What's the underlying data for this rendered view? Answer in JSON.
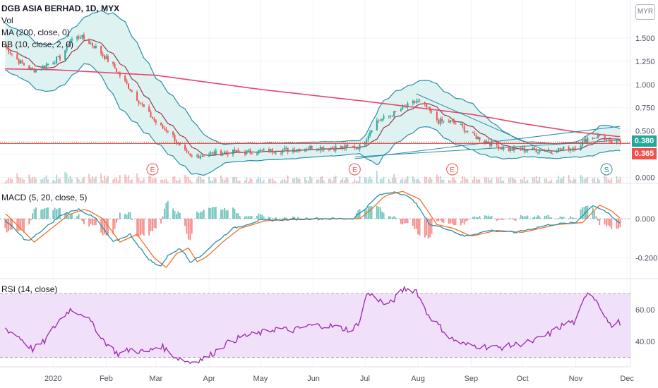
{
  "header": {
    "symbol_line": "DGB ASIA BERHAD, 1D, MYX",
    "vol_label": "Vol",
    "ma_label": "MA (200, close, 0)",
    "bb_label": "BB (10, close, 2, 0)",
    "currency": "MYR"
  },
  "price_tags": {
    "last": "0.380",
    "ref": "0.365"
  },
  "macd_label": "MACD (5, 20, close, 5)",
  "rsi_label": "RSI (14, close)",
  "colors": {
    "up": "#26a69a",
    "down": "#ef5350",
    "ma200": "#e6456d",
    "bb_basis": "#8e3c52",
    "bb_band": "#2a8fa6",
    "bb_fill": "#d6f0ee",
    "macd_line": "#2a8fa6",
    "signal_line": "#f2702b",
    "rsi_line": "#9c27b0",
    "rsi_fill": "#f1e0fa",
    "ref_line": "#e53935"
  },
  "chart_data": [
    {
      "type": "candlestick",
      "pane": "price",
      "y_ticks": [
        "1.500",
        "1.250",
        "1.000",
        "0.750",
        "0.500",
        "0.250",
        "0.000"
      ],
      "ylim": [
        -0.05,
        1.85
      ],
      "x_ticks": [
        "2020",
        "Feb",
        "Mar",
        "Apr",
        "May",
        "Jun",
        "Jul",
        "Aug",
        "Sep",
        "Oct",
        "Nov",
        "Dec"
      ],
      "x_tick_days": [
        0,
        31,
        60,
        91,
        121,
        152,
        182,
        213,
        244,
        274,
        305,
        335
      ],
      "x_range_days": [
        -31,
        337
      ],
      "close_keyframes": [
        [
          -30,
          1.45
        ],
        [
          -20,
          1.25
        ],
        [
          -12,
          1.15
        ],
        [
          -5,
          1.2
        ],
        [
          5,
          1.3
        ],
        [
          10,
          1.48
        ],
        [
          16,
          1.52
        ],
        [
          25,
          1.4
        ],
        [
          35,
          1.2
        ],
        [
          45,
          0.95
        ],
        [
          55,
          0.7
        ],
        [
          62,
          0.55
        ],
        [
          68,
          0.5
        ],
        [
          75,
          0.3
        ],
        [
          80,
          0.22
        ],
        [
          90,
          0.25
        ],
        [
          100,
          0.27
        ],
        [
          110,
          0.27
        ],
        [
          120,
          0.28
        ],
        [
          130,
          0.29
        ],
        [
          140,
          0.3
        ],
        [
          150,
          0.32
        ],
        [
          160,
          0.32
        ],
        [
          170,
          0.32
        ],
        [
          180,
          0.33
        ],
        [
          182,
          0.4
        ],
        [
          188,
          0.6
        ],
        [
          195,
          0.65
        ],
        [
          205,
          0.75
        ],
        [
          212,
          0.82
        ],
        [
          218,
          0.75
        ],
        [
          225,
          0.6
        ],
        [
          232,
          0.6
        ],
        [
          238,
          0.55
        ],
        [
          245,
          0.45
        ],
        [
          255,
          0.37
        ],
        [
          265,
          0.3
        ],
        [
          275,
          0.3
        ],
        [
          285,
          0.29
        ],
        [
          295,
          0.3
        ],
        [
          305,
          0.32
        ],
        [
          312,
          0.42
        ],
        [
          320,
          0.45
        ],
        [
          325,
          0.37
        ],
        [
          330,
          0.38
        ]
      ],
      "ma200_keyframes": [
        [
          -31,
          1.17
        ],
        [
          0,
          1.16
        ],
        [
          60,
          1.1
        ],
        [
          120,
          0.95
        ],
        [
          182,
          0.82
        ],
        [
          213,
          0.75
        ],
        [
          244,
          0.68
        ],
        [
          274,
          0.58
        ],
        [
          305,
          0.49
        ],
        [
          330,
          0.44
        ]
      ],
      "bb_width_keyframes": [
        [
          -31,
          0.25
        ],
        [
          20,
          0.25
        ],
        [
          40,
          0.5
        ],
        [
          60,
          0.35
        ],
        [
          80,
          0.3
        ],
        [
          100,
          0.1
        ],
        [
          180,
          0.07
        ],
        [
          190,
          0.3
        ],
        [
          215,
          0.25
        ],
        [
          245,
          0.25
        ],
        [
          275,
          0.08
        ],
        [
          305,
          0.08
        ],
        [
          320,
          0.15
        ],
        [
          330,
          0.12
        ]
      ],
      "earnings_markers": [
        {
          "day": 58,
          "label": "E"
        },
        {
          "day": 176,
          "label": "E"
        },
        {
          "day": 233,
          "label": "E"
        }
      ],
      "split_marker": {
        "day": 323,
        "label": "S"
      },
      "trend_lines": [
        {
          "from": [
            176,
            0.2
          ],
          "to": [
            331,
            0.55
          ]
        },
        {
          "from": [
            176,
            0.22
          ],
          "to": [
            331,
            0.4
          ]
        },
        {
          "from": [
            212,
            0.9
          ],
          "to": [
            292,
            0.25
          ]
        }
      ],
      "ref_price": 0.365,
      "last_price": 0.38
    },
    {
      "type": "histogram+line",
      "pane": "macd",
      "y_ticks": [
        "0.000",
        "-0.200"
      ],
      "ylim": [
        -0.3,
        0.17
      ],
      "macd_keyframes": [
        [
          -31,
          0.02
        ],
        [
          -15,
          -0.12
        ],
        [
          -5,
          -0.05
        ],
        [
          5,
          0.02
        ],
        [
          15,
          0.05
        ],
        [
          25,
          0.0
        ],
        [
          35,
          -0.12
        ],
        [
          45,
          -0.08
        ],
        [
          55,
          -0.2
        ],
        [
          62,
          -0.25
        ],
        [
          68,
          -0.18
        ],
        [
          75,
          -0.15
        ],
        [
          80,
          -0.22
        ],
        [
          85,
          -0.2
        ],
        [
          95,
          -0.12
        ],
        [
          105,
          -0.05
        ],
        [
          120,
          -0.01
        ],
        [
          150,
          0.0
        ],
        [
          175,
          0.0
        ],
        [
          182,
          0.05
        ],
        [
          190,
          0.12
        ],
        [
          200,
          0.14
        ],
        [
          210,
          0.1
        ],
        [
          220,
          -0.03
        ],
        [
          230,
          -0.05
        ],
        [
          240,
          -0.09
        ],
        [
          255,
          -0.06
        ],
        [
          270,
          -0.07
        ],
        [
          290,
          -0.03
        ],
        [
          305,
          -0.02
        ],
        [
          315,
          0.07
        ],
        [
          322,
          0.04
        ],
        [
          330,
          -0.02
        ]
      ],
      "signal_lag": 4
    },
    {
      "type": "line",
      "pane": "rsi",
      "y_ticks": [
        "60.00",
        "40.00"
      ],
      "band": [
        30,
        70
      ],
      "ylim": [
        25,
        78
      ],
      "rsi_keyframes": [
        [
          -31,
          50
        ],
        [
          -20,
          43
        ],
        [
          -12,
          35
        ],
        [
          -5,
          40
        ],
        [
          0,
          48
        ],
        [
          5,
          55
        ],
        [
          10,
          60
        ],
        [
          18,
          57
        ],
        [
          25,
          48
        ],
        [
          30,
          40
        ],
        [
          38,
          32
        ],
        [
          45,
          35
        ],
        [
          55,
          33
        ],
        [
          62,
          38
        ],
        [
          72,
          30
        ],
        [
          80,
          27
        ],
        [
          90,
          30
        ],
        [
          100,
          38
        ],
        [
          110,
          43
        ],
        [
          120,
          45
        ],
        [
          130,
          48
        ],
        [
          140,
          47
        ],
        [
          150,
          50
        ],
        [
          160,
          50
        ],
        [
          175,
          47
        ],
        [
          180,
          55
        ],
        [
          183,
          70
        ],
        [
          188,
          68
        ],
        [
          195,
          62
        ],
        [
          205,
          73
        ],
        [
          212,
          72
        ],
        [
          218,
          58
        ],
        [
          225,
          50
        ],
        [
          232,
          42
        ],
        [
          240,
          38
        ],
        [
          250,
          37
        ],
        [
          260,
          36
        ],
        [
          270,
          38
        ],
        [
          280,
          40
        ],
        [
          290,
          45
        ],
        [
          300,
          52
        ],
        [
          305,
          52
        ],
        [
          312,
          72
        ],
        [
          318,
          65
        ],
        [
          325,
          50
        ],
        [
          330,
          52
        ]
      ]
    }
  ]
}
